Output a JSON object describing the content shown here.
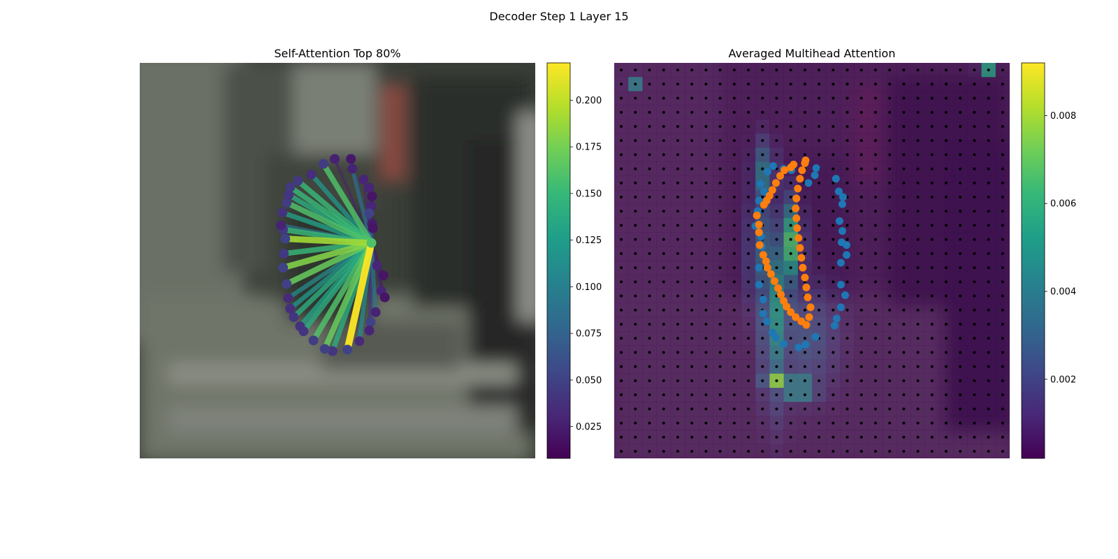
{
  "figure": {
    "suptitle": "Decoder Step 1 Layer 15"
  },
  "colors": {
    "viridis": [
      "#440154",
      "#482878",
      "#3e4989",
      "#31688e",
      "#26828e",
      "#1f9e89",
      "#35b779",
      "#6ece58",
      "#b5de2b",
      "#fde725"
    ],
    "blue_points": "#1f77b4",
    "orange_points": "#ff7f0e",
    "grid_dots": "#000000"
  },
  "chart_data": [
    {
      "type": "scatter",
      "title": "Self-Attention Top 80%",
      "xlabel": "",
      "ylabel": "",
      "xlim": [
        0,
        56
      ],
      "ylim": [
        56,
        0
      ],
      "axes_visible": false,
      "grid": false,
      "background": "blurred camera image",
      "query_point": {
        "x": 32.8,
        "y": 25.5
      },
      "points": [
        {
          "x": 26.0,
          "y": 14.3
        },
        {
          "x": 27.6,
          "y": 13.6
        },
        {
          "x": 29.9,
          "y": 13.6
        },
        {
          "x": 30.1,
          "y": 15.0
        },
        {
          "x": 31.7,
          "y": 16.5
        },
        {
          "x": 32.5,
          "y": 17.7
        },
        {
          "x": 32.9,
          "y": 18.9
        },
        {
          "x": 32.8,
          "y": 20.3
        },
        {
          "x": 32.5,
          "y": 21.3
        },
        {
          "x": 32.9,
          "y": 22.8
        },
        {
          "x": 33.0,
          "y": 23.4
        },
        {
          "x": 33.6,
          "y": 28.7
        },
        {
          "x": 34.5,
          "y": 30.1
        },
        {
          "x": 34.2,
          "y": 32.3
        },
        {
          "x": 34.7,
          "y": 33.2
        },
        {
          "x": 33.4,
          "y": 35.3
        },
        {
          "x": 32.7,
          "y": 36.7
        },
        {
          "x": 32.5,
          "y": 37.9
        },
        {
          "x": 31.1,
          "y": 39.4
        },
        {
          "x": 29.4,
          "y": 40.6
        },
        {
          "x": 27.3,
          "y": 40.8
        },
        {
          "x": 26.2,
          "y": 40.5
        },
        {
          "x": 24.6,
          "y": 39.3
        },
        {
          "x": 23.2,
          "y": 38.0
        },
        {
          "x": 22.7,
          "y": 37.3
        },
        {
          "x": 21.8,
          "y": 36.0
        },
        {
          "x": 21.3,
          "y": 34.8
        },
        {
          "x": 21.0,
          "y": 33.3
        },
        {
          "x": 20.8,
          "y": 31.3
        },
        {
          "x": 20.3,
          "y": 29.0
        },
        {
          "x": 20.4,
          "y": 27.0
        },
        {
          "x": 20.6,
          "y": 24.9
        },
        {
          "x": 20.3,
          "y": 23.6
        },
        {
          "x": 20.0,
          "y": 23.0
        },
        {
          "x": 20.2,
          "y": 21.2
        },
        {
          "x": 20.8,
          "y": 19.8
        },
        {
          "x": 21.1,
          "y": 18.7
        },
        {
          "x": 21.3,
          "y": 17.6
        },
        {
          "x": 22.4,
          "y": 16.7
        },
        {
          "x": 24.3,
          "y": 15.8
        }
      ],
      "weights": [
        0.16,
        0.028,
        0.022,
        0.09,
        0.03,
        0.03,
        0.02,
        0.03,
        0.05,
        0.07,
        0.02,
        0.03,
        0.02,
        0.03,
        0.02,
        0.09,
        0.05,
        0.03,
        0.11,
        0.22,
        0.14,
        0.17,
        0.16,
        0.14,
        0.13,
        0.14,
        0.12,
        0.11,
        0.17,
        0.18,
        0.15,
        0.19,
        0.15,
        0.09,
        0.13,
        0.16,
        0.14,
        0.15,
        0.15,
        0.12
      ],
      "colorbar": {
        "min": 0.008,
        "max": 0.22,
        "ticks": [
          0.025,
          0.05,
          0.075,
          0.1,
          0.125,
          0.15,
          0.175,
          0.2
        ],
        "tick_labels": [
          "0.025",
          "0.050",
          "0.075",
          "0.100",
          "0.125",
          "0.150",
          "0.175",
          "0.200"
        ]
      }
    },
    {
      "type": "heatmap",
      "title": "Averaged Multihead Attention",
      "xlabel": "",
      "ylabel": "",
      "xlim": [
        0,
        28
      ],
      "ylim": [
        28,
        0
      ],
      "axes_visible": false,
      "grid_cells": 28,
      "reference_grid_points": "28 x 28 black dots at cell centers",
      "hotspots": [
        {
          "x": 11.4,
          "y": 22.5,
          "value": 0.0078,
          "sx": 0.6,
          "sy": 0.6
        },
        {
          "x": 12.4,
          "y": 12.8,
          "value": 0.0068,
          "sx": 0.6,
          "sy": 2.2
        },
        {
          "x": 11.5,
          "y": 17.5,
          "value": 0.0052,
          "sx": 0.8,
          "sy": 4.5
        },
        {
          "x": 13.0,
          "y": 23.0,
          "value": 0.0058,
          "sx": 1.0,
          "sy": 0.7
        },
        {
          "x": 10.6,
          "y": 8.0,
          "value": 0.0042,
          "sx": 0.6,
          "sy": 1.8
        },
        {
          "x": 10.4,
          "y": 13.5,
          "value": 0.0034,
          "sx": 0.7,
          "sy": 3.5
        },
        {
          "x": 26.4,
          "y": 0.4,
          "value": 0.0058,
          "sx": 0.4,
          "sy": 0.4
        },
        {
          "x": 1.4,
          "y": 1.4,
          "value": 0.0044,
          "sx": 0.4,
          "sy": 0.4
        },
        {
          "x": 13.5,
          "y": 19.5,
          "value": 0.0024,
          "sx": 1.8,
          "sy": 3.0
        }
      ],
      "series": [
        {
          "color": "#1f77b4",
          "points": [
            {
              "x": 11.25,
              "y": 7.3
            },
            {
              "x": 10.85,
              "y": 7.7
            },
            {
              "x": 12.0,
              "y": 7.5
            },
            {
              "x": 12.55,
              "y": 7.6
            },
            {
              "x": 10.35,
              "y": 8.55
            },
            {
              "x": 10.6,
              "y": 9.1
            },
            {
              "x": 10.25,
              "y": 9.75
            },
            {
              "x": 10.15,
              "y": 10.5
            },
            {
              "x": 10.0,
              "y": 11.55
            },
            {
              "x": 10.4,
              "y": 12.3
            },
            {
              "x": 10.45,
              "y": 13.0
            },
            {
              "x": 10.25,
              "y": 14.5
            },
            {
              "x": 10.25,
              "y": 15.7
            },
            {
              "x": 10.55,
              "y": 16.75
            },
            {
              "x": 10.55,
              "y": 17.75
            },
            {
              "x": 10.8,
              "y": 18.3
            },
            {
              "x": 11.2,
              "y": 19.1
            },
            {
              "x": 11.45,
              "y": 19.45
            },
            {
              "x": 12.0,
              "y": 19.9
            },
            {
              "x": 13.05,
              "y": 20.15
            },
            {
              "x": 13.55,
              "y": 19.95
            },
            {
              "x": 14.25,
              "y": 19.4
            },
            {
              "x": 15.6,
              "y": 18.6
            },
            {
              "x": 15.75,
              "y": 18.1
            },
            {
              "x": 16.05,
              "y": 17.3
            },
            {
              "x": 16.35,
              "y": 16.45
            },
            {
              "x": 16.05,
              "y": 15.7
            },
            {
              "x": 16.05,
              "y": 14.15
            },
            {
              "x": 16.45,
              "y": 13.6
            },
            {
              "x": 16.45,
              "y": 12.9
            },
            {
              "x": 16.1,
              "y": 12.7
            },
            {
              "x": 16.15,
              "y": 11.9
            },
            {
              "x": 15.95,
              "y": 11.2
            },
            {
              "x": 16.15,
              "y": 10.0
            },
            {
              "x": 16.2,
              "y": 9.5
            },
            {
              "x": 15.9,
              "y": 9.1
            },
            {
              "x": 15.7,
              "y": 8.2
            },
            {
              "x": 14.3,
              "y": 7.45
            },
            {
              "x": 14.2,
              "y": 7.95
            },
            {
              "x": 13.75,
              "y": 8.5
            }
          ]
        },
        {
          "color": "#ff7f0e",
          "points": [
            {
              "x": 13.55,
              "y": 6.9
            },
            {
              "x": 13.5,
              "y": 7.1
            },
            {
              "x": 12.7,
              "y": 7.2
            },
            {
              "x": 12.5,
              "y": 7.4
            },
            {
              "x": 12.05,
              "y": 7.6
            },
            {
              "x": 11.75,
              "y": 8.0
            },
            {
              "x": 11.45,
              "y": 8.5
            },
            {
              "x": 11.2,
              "y": 9.0
            },
            {
              "x": 11.0,
              "y": 9.4
            },
            {
              "x": 10.8,
              "y": 9.75
            },
            {
              "x": 10.6,
              "y": 10.05
            },
            {
              "x": 10.1,
              "y": 10.8
            },
            {
              "x": 10.25,
              "y": 11.45
            },
            {
              "x": 10.25,
              "y": 12.0
            },
            {
              "x": 10.3,
              "y": 12.9
            },
            {
              "x": 10.55,
              "y": 13.6
            },
            {
              "x": 10.75,
              "y": 14.05
            },
            {
              "x": 10.85,
              "y": 14.5
            },
            {
              "x": 11.1,
              "y": 14.95
            },
            {
              "x": 11.35,
              "y": 15.45
            },
            {
              "x": 11.6,
              "y": 15.95
            },
            {
              "x": 11.8,
              "y": 16.4
            },
            {
              "x": 12.0,
              "y": 16.85
            },
            {
              "x": 12.2,
              "y": 17.25
            },
            {
              "x": 12.5,
              "y": 17.65
            },
            {
              "x": 12.85,
              "y": 18.0
            },
            {
              "x": 13.25,
              "y": 18.3
            },
            {
              "x": 13.6,
              "y": 18.55
            },
            {
              "x": 13.8,
              "y": 18.0
            },
            {
              "x": 13.9,
              "y": 17.3
            },
            {
              "x": 13.7,
              "y": 16.6
            },
            {
              "x": 13.6,
              "y": 15.9
            },
            {
              "x": 13.5,
              "y": 15.2
            },
            {
              "x": 13.35,
              "y": 14.5
            },
            {
              "x": 13.25,
              "y": 13.8
            },
            {
              "x": 13.15,
              "y": 13.1
            },
            {
              "x": 13.05,
              "y": 12.4
            },
            {
              "x": 12.95,
              "y": 11.7
            },
            {
              "x": 12.9,
              "y": 11.0
            },
            {
              "x": 12.85,
              "y": 10.3
            },
            {
              "x": 12.9,
              "y": 9.6
            },
            {
              "x": 13.0,
              "y": 8.9
            },
            {
              "x": 13.15,
              "y": 8.2
            },
            {
              "x": 13.3,
              "y": 7.6
            }
          ]
        }
      ],
      "colorbar": {
        "min": 0.0002,
        "max": 0.0092,
        "ticks": [
          0.002,
          0.004,
          0.006,
          0.008
        ],
        "tick_labels": [
          "0.002",
          "0.004",
          "0.006",
          "0.008"
        ]
      }
    }
  ]
}
